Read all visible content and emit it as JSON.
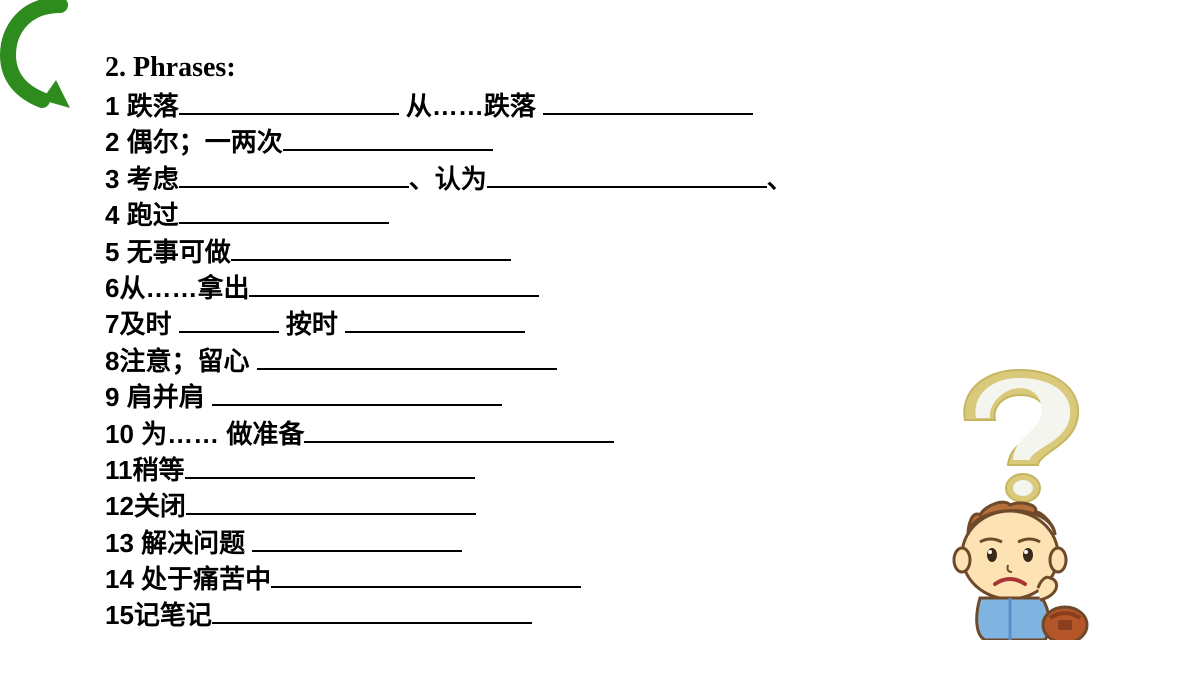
{
  "title": "2. Phrases:",
  "arrow": {
    "color": "#2e8b1e",
    "stroke_width": 16
  },
  "items": [
    {
      "n": "1",
      "parts": [
        {
          "text": " 跌落"
        },
        {
          "blank": 220
        },
        {
          "text": "   从……跌落 "
        },
        {
          "blank": 210
        }
      ]
    },
    {
      "n": "2",
      "parts": [
        {
          "text": " 偶尔；一两次"
        },
        {
          "blank": 210
        }
      ]
    },
    {
      "n": "3",
      "parts": [
        {
          "text": " 考虑"
        },
        {
          "blank": 230
        },
        {
          "text": "、认为"
        },
        {
          "blank": 280
        },
        {
          "text": "、"
        }
      ]
    },
    {
      "n": "4",
      "parts": [
        {
          "text": " 跑过"
        },
        {
          "blank": 210
        }
      ]
    },
    {
      "n": "5",
      "parts": [
        {
          "text": " 无事可做"
        },
        {
          "blank": 280
        }
      ]
    },
    {
      "n": "6",
      "parts": [
        {
          "text": "从……拿出"
        },
        {
          "blank": 290
        }
      ]
    },
    {
      "n": "7",
      "parts": [
        {
          "text": "及时  "
        },
        {
          "blank": 100
        },
        {
          "text": "  按时  "
        },
        {
          "blank": 180
        }
      ]
    },
    {
      "n": "8",
      "parts": [
        {
          "text": "注意；留心  "
        },
        {
          "blank": 300
        }
      ]
    },
    {
      "n": "9",
      "parts": [
        {
          "text": " 肩并肩  "
        },
        {
          "blank": 290
        }
      ]
    },
    {
      "n": "10",
      "parts": [
        {
          "text": " 为……  做准备"
        },
        {
          "blank": 310
        }
      ]
    },
    {
      "n": "11",
      "parts": [
        {
          "text": "稍等"
        },
        {
          "blank": 290
        }
      ]
    },
    {
      "n": "12",
      "parts": [
        {
          "text": "关闭"
        },
        {
          "blank": 290
        }
      ]
    },
    {
      "n": "13",
      "parts": [
        {
          "text": "  解决问题  "
        },
        {
          "blank": 210
        }
      ]
    },
    {
      "n": "14",
      "parts": [
        {
          "text": "  处于痛苦中"
        },
        {
          "blank": 310
        }
      ]
    },
    {
      "n": "15",
      "parts": [
        {
          "text": "记笔记"
        },
        {
          "blank": 320
        }
      ]
    }
  ],
  "character": {
    "qmark_outer": "#d9c97a",
    "qmark_inner": "#f5f5f0",
    "face": "#fde2b3",
    "hair": "#b5703a",
    "outline": "#6e4a2a",
    "shirt": "#7fb4e0",
    "shirt_dark": "#5a8ec4",
    "bag": "#b5552a",
    "bag_dark": "#8a3e1e",
    "mouth": "#a33",
    "eye": "#3a2a1a"
  }
}
